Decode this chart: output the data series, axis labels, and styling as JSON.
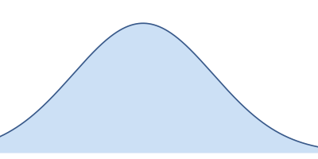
{
  "mean": 0.5,
  "std": 0.22,
  "x_min": 0.05,
  "x_max": 1.05,
  "y_min": -0.05,
  "y_max": 1.18,
  "fill_color": "#cce0f5",
  "line_color": "#3a5a8a",
  "line_width": 1.2,
  "background_color": "#ffffff",
  "fig_width": 4.0,
  "fig_height": 2.0,
  "dpi": 100
}
